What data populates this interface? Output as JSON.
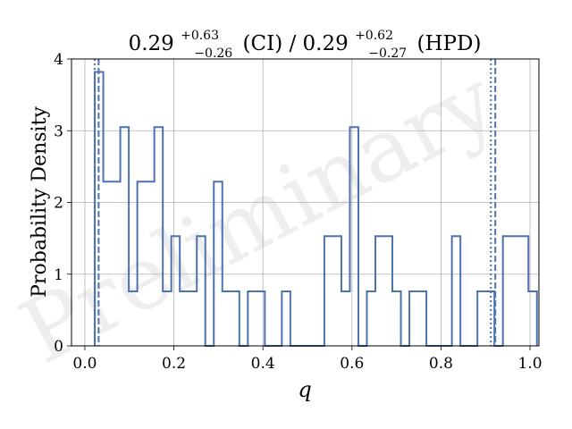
{
  "chart_data": {
    "type": "histogram-step",
    "title": {
      "value": "0.29",
      "ci_upper": "+0.63",
      "ci_lower": "−0.26",
      "ci_label": "(CI)",
      "separator": "/",
      "hpd_value": "0.29",
      "hpd_upper": "+0.62",
      "hpd_lower": "−0.27",
      "hpd_label": "(HPD)"
    },
    "xlabel": "q",
    "ylabel": "Probability Density",
    "watermark": "Preliminary",
    "xlim": [
      -0.03,
      1.02
    ],
    "ylim": [
      0,
      4
    ],
    "xticks": [
      0.0,
      0.2,
      0.4,
      0.6,
      0.8,
      1.0
    ],
    "xtick_labels": [
      "0.0",
      "0.2",
      "0.4",
      "0.6",
      "0.8",
      "1.0"
    ],
    "yticks": [
      0,
      1,
      2,
      3,
      4
    ],
    "ytick_labels": [
      "0",
      "1",
      "2",
      "3",
      "4"
    ],
    "grid": true,
    "bin_start": 0.0223,
    "bin_width": 0.0191,
    "densities": [
      3.82,
      2.29,
      2.29,
      3.05,
      0.76,
      2.29,
      2.29,
      3.05,
      0.76,
      1.53,
      0.76,
      0.76,
      1.53,
      0.0,
      2.29,
      0.76,
      0.76,
      0.0,
      0.76,
      0.76,
      0.0,
      0.0,
      0.76,
      0.0,
      0.0,
      0.0,
      0.0,
      1.53,
      1.53,
      0.76,
      3.05,
      0.0,
      0.76,
      1.53,
      1.53,
      0.76,
      0.0,
      0.76,
      0.76,
      0.0,
      0.0,
      0.0,
      1.53,
      0.0,
      0.0,
      0.76,
      0.76,
      0.0,
      1.53,
      1.53,
      1.53,
      0.76
    ],
    "interval_lines": [
      {
        "style": "dotted",
        "x": 0.022
      },
      {
        "style": "dashed",
        "x": 0.031
      },
      {
        "style": "dotted",
        "x": 0.912
      },
      {
        "style": "dashed",
        "x": 0.922
      }
    ],
    "colors": {
      "line": "#4c72b0",
      "grid": "#b0b0b0",
      "axes": "#000000",
      "watermark": "#eeeeee"
    }
  }
}
